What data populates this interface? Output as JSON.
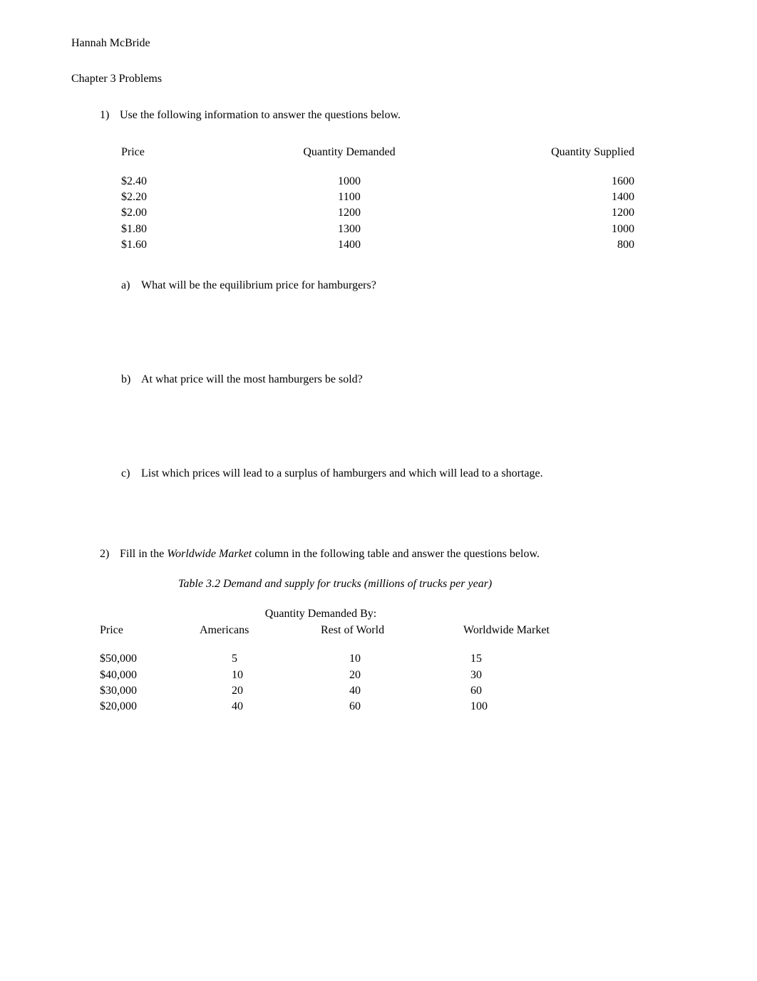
{
  "author": "Hannah McBride",
  "chapter_title": "Chapter 3 Problems",
  "q1": {
    "marker": "1)",
    "text": "Use the following information to answer the questions below.",
    "table": {
      "headers": {
        "price": "Price",
        "qd": "Quantity Demanded",
        "qs": "Quantity Supplied"
      },
      "rows": [
        {
          "price": "$2.40",
          "qd": "1000",
          "qs": "1600"
        },
        {
          "price": "$2.20",
          "qd": "1100",
          "qs": "1400"
        },
        {
          "price": "$2.00",
          "qd": "1200",
          "qs": "1200"
        },
        {
          "price": "$1.80",
          "qd": "1300",
          "qs": "1000"
        },
        {
          "price": "$1.60",
          "qd": "1400",
          "qs": "800"
        }
      ]
    },
    "a": {
      "marker": "a)",
      "text": "What will be the equilibrium price for hamburgers?"
    },
    "b": {
      "marker": "b)",
      "text": "At what price will the most hamburgers be sold?"
    },
    "c": {
      "marker": "c)",
      "text": "List which prices will lead to a surplus of hamburgers and which will lead to a shortage."
    }
  },
  "q2": {
    "marker": "2)",
    "text_pre": "Fill in the ",
    "text_italic": "Worldwide Market",
    "text_post": " column in the following table and answer the questions below.",
    "caption": "Table 3.2 Demand and supply for trucks (millions of trucks per year)",
    "top_header": "Quantity Demanded By:",
    "headers": {
      "price": "Price",
      "americans": "Americans",
      "rest": "Rest of World",
      "ww": "Worldwide Market"
    },
    "rows": [
      {
        "price": "$50,000",
        "americans": "5",
        "rest": "10",
        "ww": "15"
      },
      {
        "price": "$40,000",
        "americans": "10",
        "rest": "20",
        "ww": "30"
      },
      {
        "price": "$30,000",
        "americans": "20",
        "rest": "40",
        "ww": "60"
      },
      {
        "price": "$20,000",
        "americans": "40",
        "rest": "60",
        "ww": "100"
      }
    ]
  }
}
